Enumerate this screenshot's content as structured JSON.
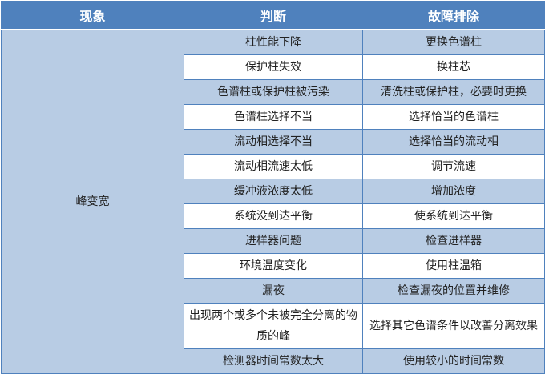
{
  "header": {
    "col1": "现象",
    "col2": "判断",
    "col3": "故障排除"
  },
  "symptom": "峰变宽",
  "rows": [
    {
      "cause": "柱性能下降",
      "fix": "更换色谱柱"
    },
    {
      "cause": "保护柱失效",
      "fix": "换柱芯"
    },
    {
      "cause": "色谱柱或保护柱被污染",
      "fix": "清洗柱或保护柱，必要时更换"
    },
    {
      "cause": "色谱柱选择不当",
      "fix": "选择恰当的色谱柱"
    },
    {
      "cause": "流动相选择不当",
      "fix": "选择恰当的流动相"
    },
    {
      "cause": "流动相流速太低",
      "fix": "调节流速"
    },
    {
      "cause": "缓冲液浓度太低",
      "fix": "增加浓度"
    },
    {
      "cause": "系统没到达平衡",
      "fix": "使系统到达平衡"
    },
    {
      "cause": "进样器问题",
      "fix": "检查进样器"
    },
    {
      "cause": "环境温度变化",
      "fix": "使用柱温箱"
    },
    {
      "cause": "漏夜",
      "fix": "检查漏夜的位置并维修"
    },
    {
      "cause": "出现两个或多个未被完全分离的物质的峰",
      "fix": "选择其它色谱条件以改善分离效果"
    },
    {
      "cause": "检测器时间常数太大",
      "fix": "使用较小的时间常数"
    }
  ]
}
